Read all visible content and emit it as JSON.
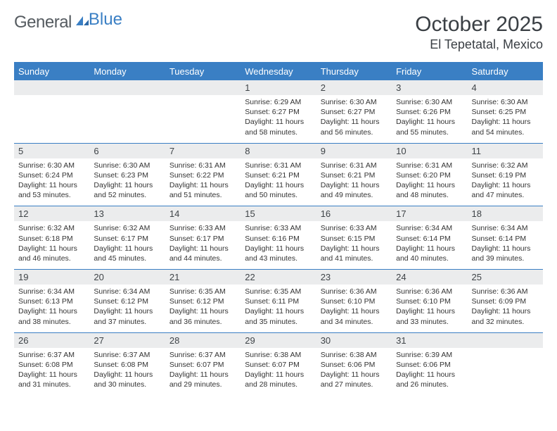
{
  "brand": {
    "part1": "General",
    "part2": "Blue"
  },
  "title": "October 2025",
  "location": "El Tepetatal, Mexico",
  "colors": {
    "accent": "#3a7fc4",
    "daynum_bg": "#ebeced",
    "text": "#3a3f44"
  },
  "days_of_week": [
    "Sunday",
    "Monday",
    "Tuesday",
    "Wednesday",
    "Thursday",
    "Friday",
    "Saturday"
  ],
  "weeks": [
    [
      null,
      null,
      null,
      {
        "n": "1",
        "sunrise": "6:29 AM",
        "sunset": "6:27 PM",
        "daylight": "11 hours and 58 minutes."
      },
      {
        "n": "2",
        "sunrise": "6:30 AM",
        "sunset": "6:27 PM",
        "daylight": "11 hours and 56 minutes."
      },
      {
        "n": "3",
        "sunrise": "6:30 AM",
        "sunset": "6:26 PM",
        "daylight": "11 hours and 55 minutes."
      },
      {
        "n": "4",
        "sunrise": "6:30 AM",
        "sunset": "6:25 PM",
        "daylight": "11 hours and 54 minutes."
      }
    ],
    [
      {
        "n": "5",
        "sunrise": "6:30 AM",
        "sunset": "6:24 PM",
        "daylight": "11 hours and 53 minutes."
      },
      {
        "n": "6",
        "sunrise": "6:30 AM",
        "sunset": "6:23 PM",
        "daylight": "11 hours and 52 minutes."
      },
      {
        "n": "7",
        "sunrise": "6:31 AM",
        "sunset": "6:22 PM",
        "daylight": "11 hours and 51 minutes."
      },
      {
        "n": "8",
        "sunrise": "6:31 AM",
        "sunset": "6:21 PM",
        "daylight": "11 hours and 50 minutes."
      },
      {
        "n": "9",
        "sunrise": "6:31 AM",
        "sunset": "6:21 PM",
        "daylight": "11 hours and 49 minutes."
      },
      {
        "n": "10",
        "sunrise": "6:31 AM",
        "sunset": "6:20 PM",
        "daylight": "11 hours and 48 minutes."
      },
      {
        "n": "11",
        "sunrise": "6:32 AM",
        "sunset": "6:19 PM",
        "daylight": "11 hours and 47 minutes."
      }
    ],
    [
      {
        "n": "12",
        "sunrise": "6:32 AM",
        "sunset": "6:18 PM",
        "daylight": "11 hours and 46 minutes."
      },
      {
        "n": "13",
        "sunrise": "6:32 AM",
        "sunset": "6:17 PM",
        "daylight": "11 hours and 45 minutes."
      },
      {
        "n": "14",
        "sunrise": "6:33 AM",
        "sunset": "6:17 PM",
        "daylight": "11 hours and 44 minutes."
      },
      {
        "n": "15",
        "sunrise": "6:33 AM",
        "sunset": "6:16 PM",
        "daylight": "11 hours and 43 minutes."
      },
      {
        "n": "16",
        "sunrise": "6:33 AM",
        "sunset": "6:15 PM",
        "daylight": "11 hours and 41 minutes."
      },
      {
        "n": "17",
        "sunrise": "6:34 AM",
        "sunset": "6:14 PM",
        "daylight": "11 hours and 40 minutes."
      },
      {
        "n": "18",
        "sunrise": "6:34 AM",
        "sunset": "6:14 PM",
        "daylight": "11 hours and 39 minutes."
      }
    ],
    [
      {
        "n": "19",
        "sunrise": "6:34 AM",
        "sunset": "6:13 PM",
        "daylight": "11 hours and 38 minutes."
      },
      {
        "n": "20",
        "sunrise": "6:34 AM",
        "sunset": "6:12 PM",
        "daylight": "11 hours and 37 minutes."
      },
      {
        "n": "21",
        "sunrise": "6:35 AM",
        "sunset": "6:12 PM",
        "daylight": "11 hours and 36 minutes."
      },
      {
        "n": "22",
        "sunrise": "6:35 AM",
        "sunset": "6:11 PM",
        "daylight": "11 hours and 35 minutes."
      },
      {
        "n": "23",
        "sunrise": "6:36 AM",
        "sunset": "6:10 PM",
        "daylight": "11 hours and 34 minutes."
      },
      {
        "n": "24",
        "sunrise": "6:36 AM",
        "sunset": "6:10 PM",
        "daylight": "11 hours and 33 minutes."
      },
      {
        "n": "25",
        "sunrise": "6:36 AM",
        "sunset": "6:09 PM",
        "daylight": "11 hours and 32 minutes."
      }
    ],
    [
      {
        "n": "26",
        "sunrise": "6:37 AM",
        "sunset": "6:08 PM",
        "daylight": "11 hours and 31 minutes."
      },
      {
        "n": "27",
        "sunrise": "6:37 AM",
        "sunset": "6:08 PM",
        "daylight": "11 hours and 30 minutes."
      },
      {
        "n": "28",
        "sunrise": "6:37 AM",
        "sunset": "6:07 PM",
        "daylight": "11 hours and 29 minutes."
      },
      {
        "n": "29",
        "sunrise": "6:38 AM",
        "sunset": "6:07 PM",
        "daylight": "11 hours and 28 minutes."
      },
      {
        "n": "30",
        "sunrise": "6:38 AM",
        "sunset": "6:06 PM",
        "daylight": "11 hours and 27 minutes."
      },
      {
        "n": "31",
        "sunrise": "6:39 AM",
        "sunset": "6:06 PM",
        "daylight": "11 hours and 26 minutes."
      },
      null
    ]
  ],
  "labels": {
    "sunrise": "Sunrise:",
    "sunset": "Sunset:",
    "daylight": "Daylight:"
  }
}
